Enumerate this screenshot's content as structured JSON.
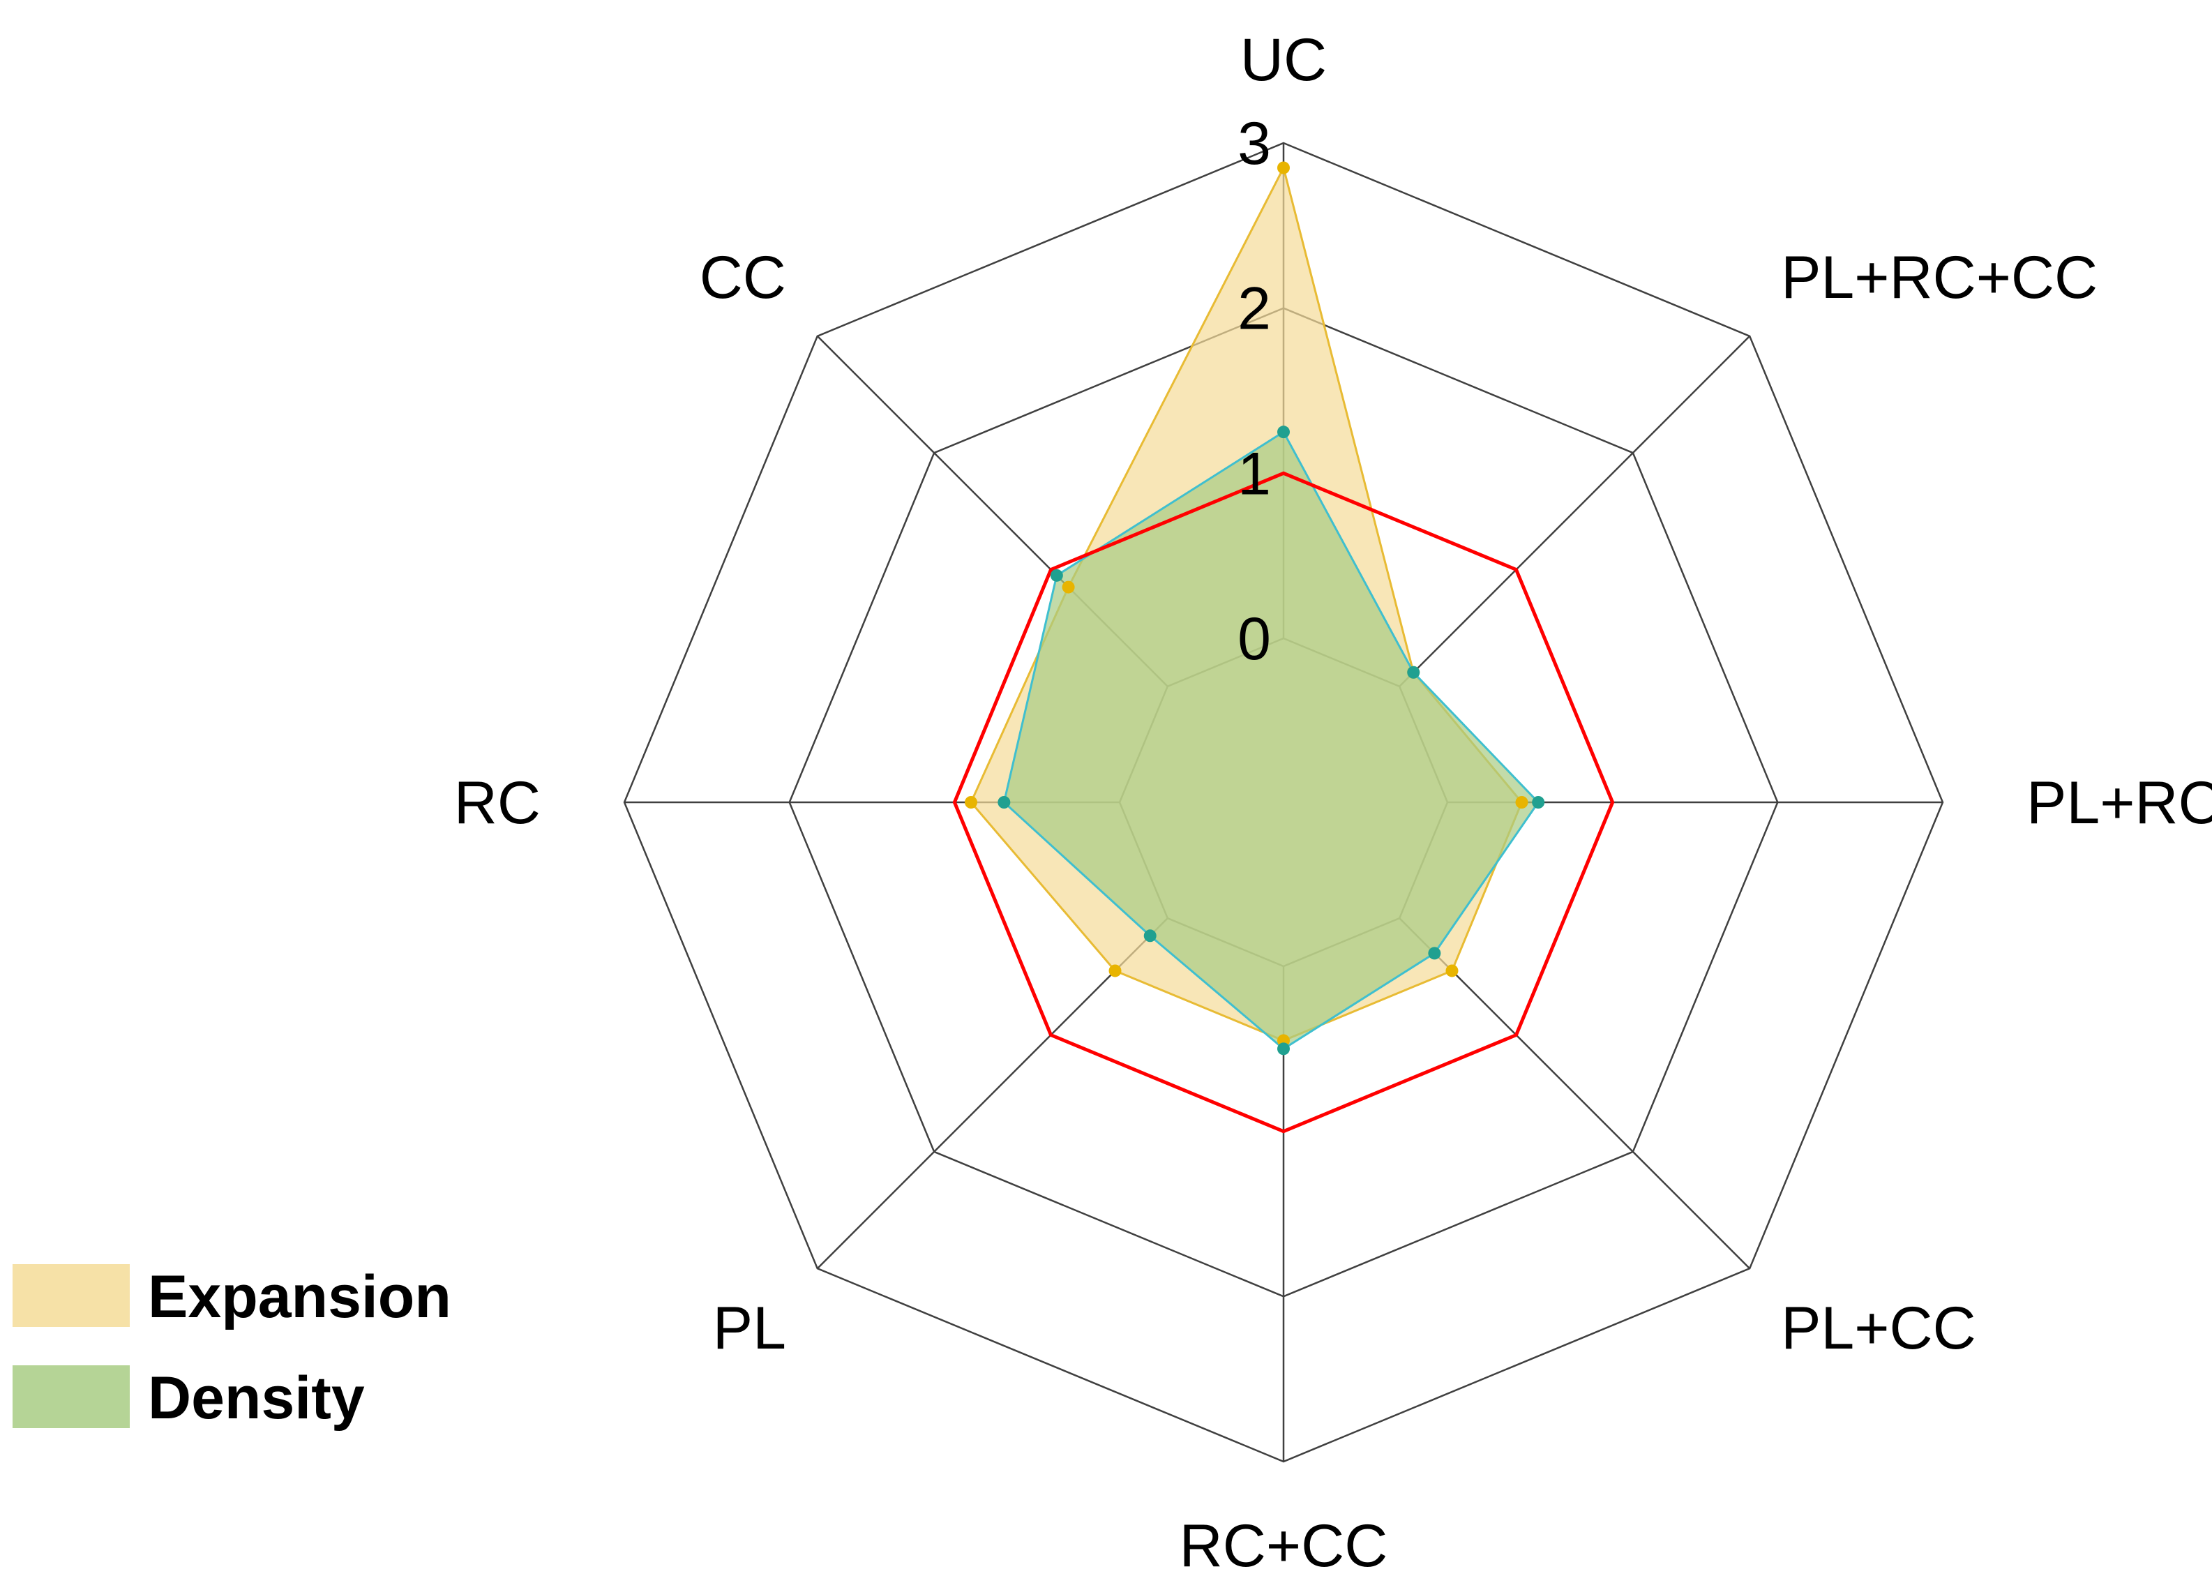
{
  "chart_data": {
    "type": "radar",
    "axes": [
      "UC",
      "PL+RC+CC",
      "PL+RC",
      "PL+CC",
      "RC+CC",
      "PL",
      "RC",
      "CC"
    ],
    "r_ticks": [
      "0",
      "1",
      "2",
      "3"
    ],
    "r_range": [
      0,
      3
    ],
    "grid": true,
    "series": [
      {
        "name": "Expansion",
        "values": [
          2.85,
          0.12,
          0.45,
          0.45,
          0.45,
          0.45,
          0.9,
          0.85
        ],
        "fill_color": "#f5dc98",
        "line_color": "#e8bb34",
        "marker_color": "#e8b400"
      },
      {
        "name": "Density",
        "values": [
          1.25,
          0.12,
          0.55,
          0.3,
          0.5,
          0.15,
          0.7,
          0.95
        ],
        "fill_color": "#a8cc84",
        "line_color": "#3fbfcf",
        "marker_color": "#20a090"
      }
    ],
    "reference": {
      "value": 1,
      "color": "#ff0000"
    },
    "legend": "bottom-left",
    "legend_entries": [
      "Expansion",
      "Density"
    ]
  }
}
